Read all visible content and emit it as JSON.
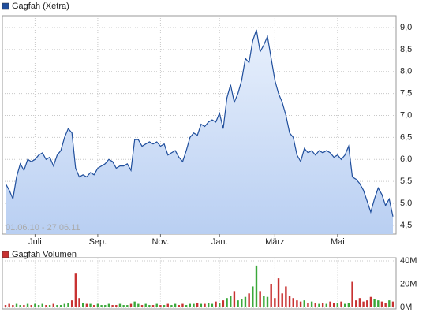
{
  "chart_data": [
    {
      "type": "area",
      "series": [
        {
          "name": "Gagfah (Xetra)",
          "color": "#1f4e9c",
          "values": [
            5.45,
            5.3,
            5.1,
            5.6,
            5.9,
            5.75,
            6.0,
            5.95,
            6.0,
            6.1,
            6.15,
            6.0,
            6.05,
            5.85,
            6.1,
            6.2,
            6.5,
            6.7,
            6.6,
            5.8,
            5.6,
            5.65,
            5.6,
            5.7,
            5.65,
            5.8,
            5.85,
            5.9,
            6.0,
            5.95,
            5.8,
            5.85,
            5.85,
            5.9,
            5.75,
            6.45,
            6.45,
            6.3,
            6.35,
            6.4,
            6.35,
            6.4,
            6.3,
            6.35,
            6.1,
            6.15,
            6.2,
            6.05,
            5.95,
            6.2,
            6.5,
            6.6,
            6.55,
            6.8,
            6.75,
            6.85,
            6.9,
            6.85,
            7.05,
            6.7,
            7.4,
            7.7,
            7.3,
            7.5,
            7.8,
            8.3,
            8.2,
            8.7,
            8.95,
            8.45,
            8.6,
            8.8,
            8.3,
            7.8,
            7.5,
            7.3,
            7.0,
            6.6,
            6.5,
            6.1,
            5.95,
            6.25,
            6.15,
            6.2,
            6.1,
            6.2,
            6.15,
            6.2,
            6.15,
            6.05,
            6.1,
            6.0,
            6.1,
            6.3,
            5.6,
            5.55,
            5.45,
            5.3,
            5.05,
            4.8,
            5.1,
            5.35,
            5.2,
            4.95,
            5.1,
            4.7
          ]
        }
      ],
      "annotation": "01.06.10 - 27.06.11",
      "xlim": [
        0,
        105
      ],
      "xticks": [
        {
          "value": 8,
          "label": "Juli"
        },
        {
          "value": 25,
          "label": "Sep."
        },
        {
          "value": 42,
          "label": "Nov."
        },
        {
          "value": 58,
          "label": "Jan."
        },
        {
          "value": 73,
          "label": "März"
        },
        {
          "value": 90,
          "label": "Mai"
        }
      ],
      "ylim": [
        4.3,
        9.27
      ],
      "yticks": [
        {
          "value": 4.5,
          "label": "4,5"
        },
        {
          "value": 5,
          "label": "5,0"
        },
        {
          "value": 5.5,
          "label": "5,5"
        },
        {
          "value": 6,
          "label": "6,0"
        },
        {
          "value": 6.5,
          "label": "6,5"
        },
        {
          "value": 7,
          "label": "7,0"
        },
        {
          "value": 7.5,
          "label": "7,5"
        },
        {
          "value": 8,
          "label": "8,0"
        },
        {
          "value": 8.5,
          "label": "8,5"
        },
        {
          "value": 9,
          "label": "9,0"
        }
      ],
      "grid": true
    },
    {
      "type": "bar",
      "series": [
        {
          "name": "Gagfah Volumen",
          "color": "#c83232",
          "values": [
            2,
            3,
            2,
            3,
            2,
            2,
            3,
            2,
            3,
            2,
            3,
            2,
            2,
            3,
            2,
            2,
            3,
            4,
            6,
            29,
            8,
            4,
            3,
            3,
            2,
            3,
            2,
            2,
            3,
            2,
            2,
            3,
            2,
            2,
            3,
            5,
            3,
            2,
            3,
            2,
            2,
            3,
            2,
            2,
            3,
            2,
            3,
            2,
            3,
            2,
            3,
            3,
            4,
            3,
            3,
            4,
            3,
            5,
            4,
            6,
            8,
            10,
            14,
            6,
            7,
            9,
            12,
            18,
            36,
            14,
            10,
            9,
            20,
            8,
            25,
            12,
            18,
            10,
            8,
            6,
            5,
            6,
            4,
            5,
            4,
            3,
            4,
            3,
            5,
            4,
            4,
            5,
            3,
            4,
            22,
            6,
            8,
            5,
            6,
            9,
            7,
            6,
            5,
            4,
            6,
            5
          ]
        }
      ],
      "up_color": "#3aa83a",
      "xlim": [
        0,
        105
      ],
      "ylim": [
        0,
        41
      ],
      "yticks": [
        {
          "value": 0,
          "label": "0M"
        },
        {
          "value": 20,
          "label": "20M"
        },
        {
          "value": 40,
          "label": "40M"
        }
      ],
      "grid": true
    }
  ]
}
